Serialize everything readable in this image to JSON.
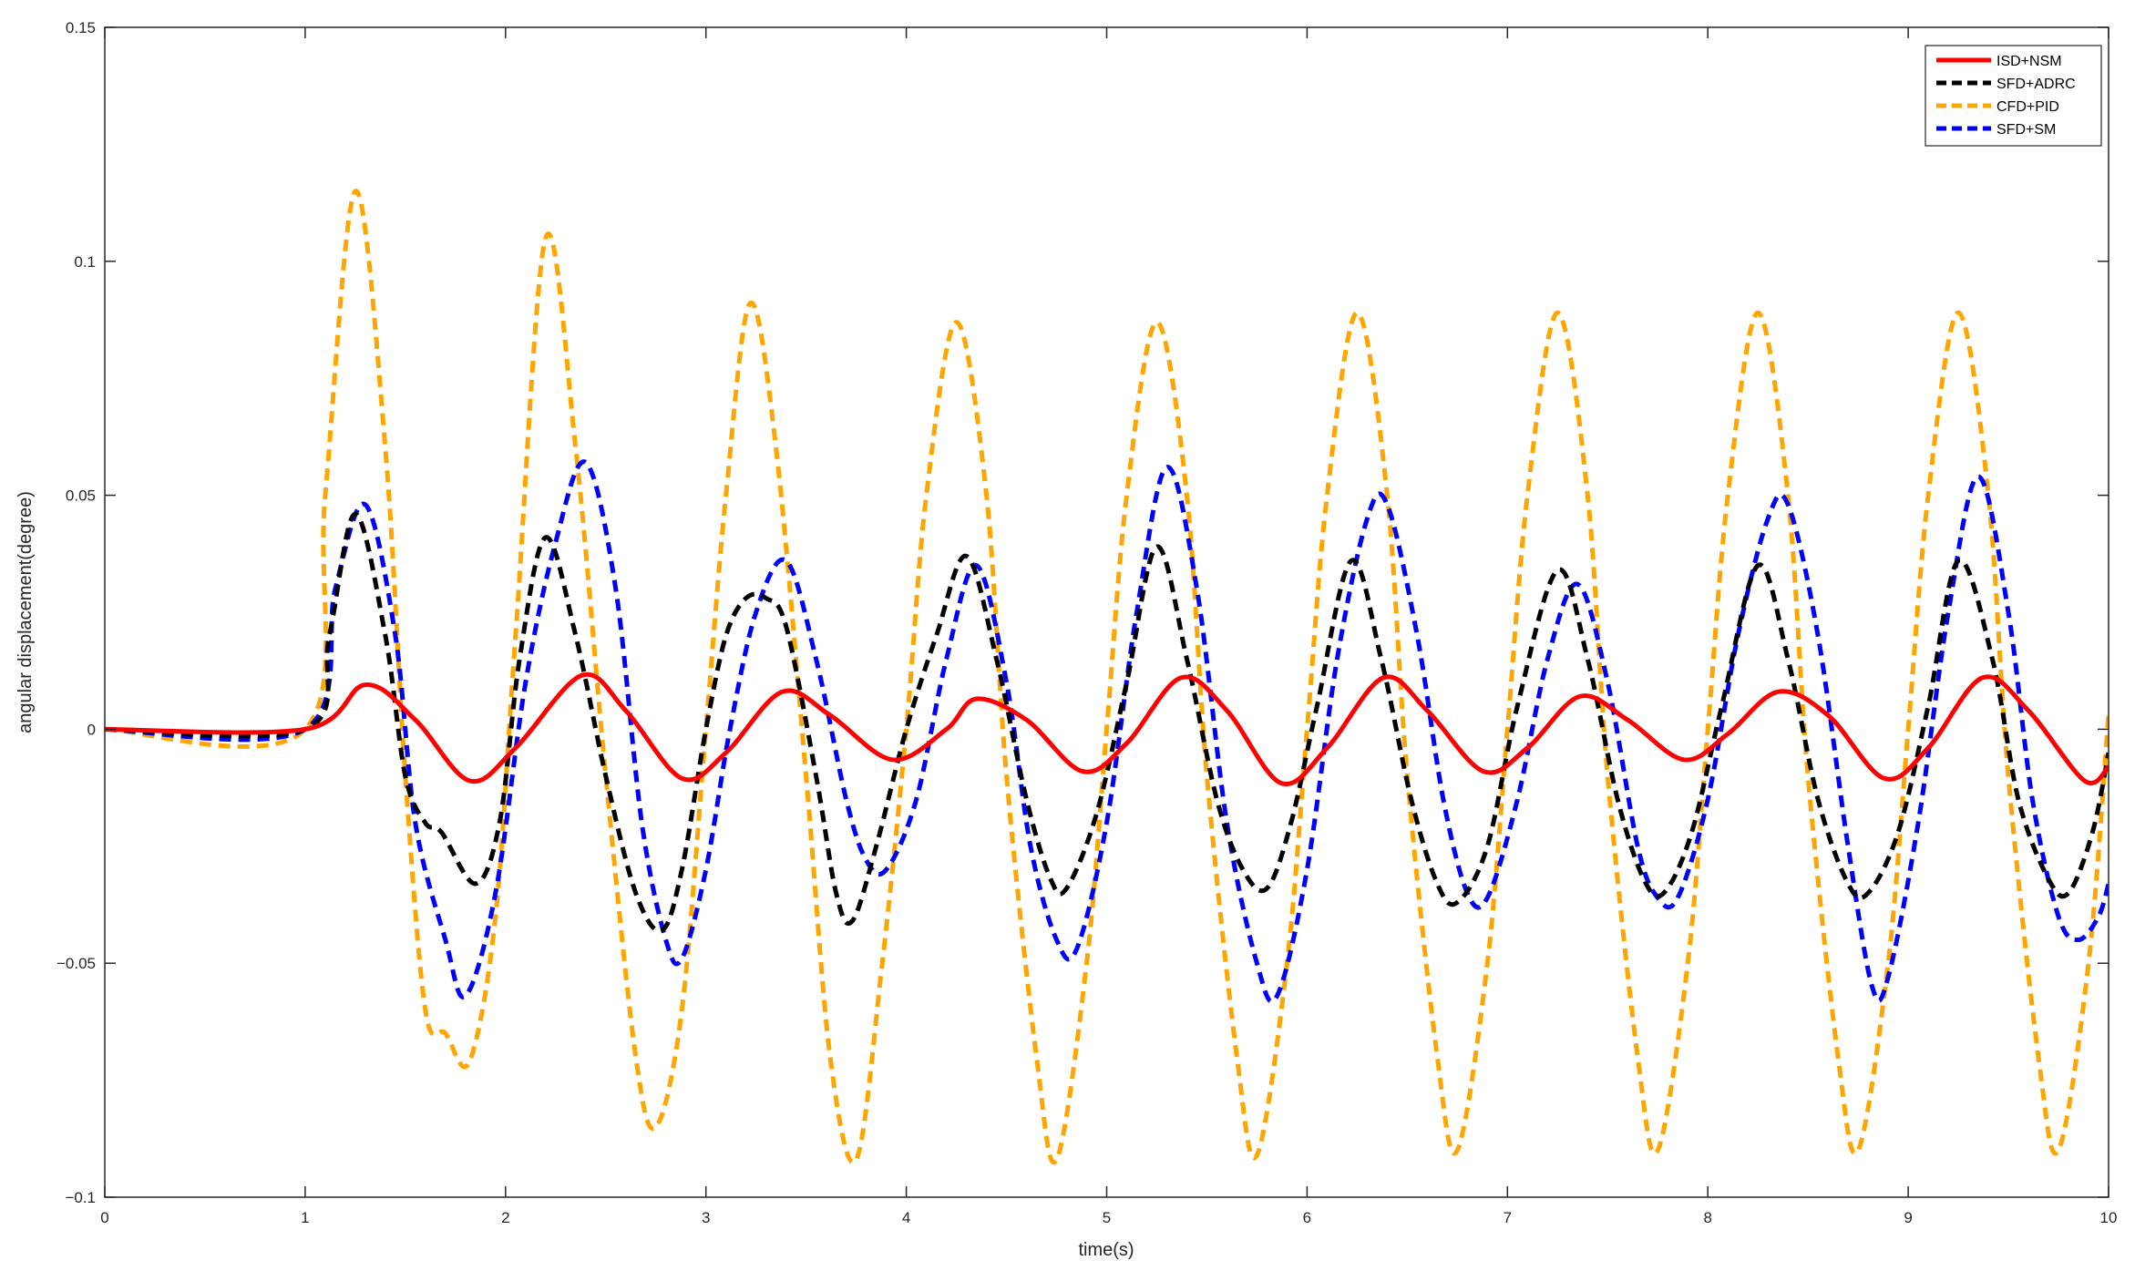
{
  "chart_data": {
    "type": "line",
    "title": "",
    "xlabel": "time(s)",
    "ylabel": "angular displacement(degree)",
    "xlim": [
      0,
      10
    ],
    "ylim": [
      -0.1,
      0.15
    ],
    "xticks": [
      0,
      1,
      2,
      3,
      4,
      5,
      6,
      7,
      8,
      9,
      10
    ],
    "xtick_labels": [
      "0",
      "1",
      "2",
      "3",
      "4",
      "5",
      "6",
      "7",
      "8",
      "9",
      "10"
    ],
    "yticks": [
      -0.1,
      -0.05,
      0,
      0.05,
      0.1,
      0.15
    ],
    "ytick_labels": [
      "−0.1",
      "−0.05",
      "0",
      "0.05",
      "0.1",
      "0.15"
    ],
    "grid": false,
    "legend_position": "top-right",
    "series": [
      {
        "name": "ISD+NSM",
        "color": "#ff0000",
        "style": "solid",
        "points": [
          [
            0,
            0
          ],
          [
            1.0,
            0
          ],
          [
            1.3,
            0.0095
          ],
          [
            1.55,
            0.002
          ],
          [
            1.82,
            -0.011
          ],
          [
            2.05,
            -0.004
          ],
          [
            2.38,
            0.0115
          ],
          [
            2.6,
            0.004
          ],
          [
            2.88,
            -0.0105
          ],
          [
            3.1,
            -0.005
          ],
          [
            3.38,
            0.008
          ],
          [
            3.62,
            0.003
          ],
          [
            3.93,
            -0.0065
          ],
          [
            4.2,
            0.0
          ],
          [
            4.35,
            0.0065
          ],
          [
            4.6,
            0.002
          ],
          [
            4.88,
            -0.009
          ],
          [
            5.1,
            -0.003
          ],
          [
            5.37,
            0.011
          ],
          [
            5.6,
            0.004
          ],
          [
            5.87,
            -0.0115
          ],
          [
            6.1,
            -0.004
          ],
          [
            6.38,
            0.011
          ],
          [
            6.6,
            0.004
          ],
          [
            6.88,
            -0.009
          ],
          [
            7.1,
            -0.004
          ],
          [
            7.36,
            0.007
          ],
          [
            7.6,
            0.002
          ],
          [
            7.88,
            -0.0065
          ],
          [
            8.1,
            -0.001
          ],
          [
            8.35,
            0.008
          ],
          [
            8.6,
            0.003
          ],
          [
            8.88,
            -0.0105
          ],
          [
            9.1,
            -0.004
          ],
          [
            9.37,
            0.011
          ],
          [
            9.6,
            0.004
          ],
          [
            9.88,
            -0.011
          ],
          [
            10.0,
            -0.008
          ]
        ]
      },
      {
        "name": "SFD+ADRC",
        "color": "#000000",
        "style": "dashed",
        "points": [
          [
            0,
            0
          ],
          [
            1.0,
            0
          ],
          [
            1.12,
            0.02
          ],
          [
            1.25,
            0.046
          ],
          [
            1.4,
            0.02
          ],
          [
            1.5,
            -0.01
          ],
          [
            1.6,
            -0.02
          ],
          [
            1.68,
            -0.022
          ],
          [
            1.85,
            -0.033
          ],
          [
            1.97,
            -0.02
          ],
          [
            2.07,
            0.015
          ],
          [
            2.2,
            0.041
          ],
          [
            2.35,
            0.02
          ],
          [
            2.5,
            -0.01
          ],
          [
            2.65,
            -0.035
          ],
          [
            2.78,
            -0.043
          ],
          [
            2.88,
            -0.03
          ],
          [
            3.0,
            0.0
          ],
          [
            3.1,
            0.02
          ],
          [
            3.2,
            0.028
          ],
          [
            3.3,
            0.028
          ],
          [
            3.4,
            0.022
          ],
          [
            3.55,
            -0.01
          ],
          [
            3.65,
            -0.035
          ],
          [
            3.73,
            -0.041
          ],
          [
            3.85,
            -0.025
          ],
          [
            4.0,
            0.0
          ],
          [
            4.15,
            0.02
          ],
          [
            4.3,
            0.037
          ],
          [
            4.45,
            0.015
          ],
          [
            4.6,
            -0.015
          ],
          [
            4.72,
            -0.032
          ],
          [
            4.8,
            -0.034
          ],
          [
            4.95,
            -0.018
          ],
          [
            5.1,
            0.01
          ],
          [
            5.25,
            0.039
          ],
          [
            5.4,
            0.015
          ],
          [
            5.55,
            -0.015
          ],
          [
            5.68,
            -0.03
          ],
          [
            5.8,
            -0.034
          ],
          [
            5.92,
            -0.02
          ],
          [
            6.05,
            0.005
          ],
          [
            6.22,
            0.036
          ],
          [
            6.37,
            0.015
          ],
          [
            6.52,
            -0.015
          ],
          [
            6.65,
            -0.033
          ],
          [
            6.75,
            -0.037
          ],
          [
            6.9,
            -0.025
          ],
          [
            7.05,
            0.005
          ],
          [
            7.25,
            0.034
          ],
          [
            7.4,
            0.015
          ],
          [
            7.55,
            -0.015
          ],
          [
            7.68,
            -0.032
          ],
          [
            7.78,
            -0.035
          ],
          [
            7.92,
            -0.022
          ],
          [
            8.07,
            0.005
          ],
          [
            8.25,
            0.035
          ],
          [
            8.4,
            0.015
          ],
          [
            8.55,
            -0.015
          ],
          [
            8.7,
            -0.033
          ],
          [
            8.8,
            -0.035
          ],
          [
            8.95,
            -0.022
          ],
          [
            9.1,
            0.005
          ],
          [
            9.25,
            0.036
          ],
          [
            9.42,
            0.015
          ],
          [
            9.55,
            -0.015
          ],
          [
            9.7,
            -0.032
          ],
          [
            9.8,
            -0.035
          ],
          [
            9.92,
            -0.022
          ],
          [
            10.0,
            -0.005
          ]
        ]
      },
      {
        "name": "CFD+PID",
        "color": "#ffa500",
        "style": "dashed",
        "points": [
          [
            0,
            0
          ],
          [
            1.0,
            0
          ],
          [
            1.1,
            0.05
          ],
          [
            1.25,
            0.115
          ],
          [
            1.4,
            0.06
          ],
          [
            1.5,
            -0.01
          ],
          [
            1.6,
            -0.06
          ],
          [
            1.7,
            -0.065
          ],
          [
            1.82,
            -0.071
          ],
          [
            1.95,
            -0.04
          ],
          [
            2.05,
            0.02
          ],
          [
            2.2,
            0.105
          ],
          [
            2.35,
            0.06
          ],
          [
            2.5,
            -0.01
          ],
          [
            2.65,
            -0.07
          ],
          [
            2.75,
            -0.085
          ],
          [
            2.88,
            -0.06
          ],
          [
            3.0,
            0.0
          ],
          [
            3.1,
            0.05
          ],
          [
            3.22,
            0.091
          ],
          [
            3.35,
            0.06
          ],
          [
            3.5,
            -0.01
          ],
          [
            3.62,
            -0.07
          ],
          [
            3.75,
            -0.092
          ],
          [
            3.88,
            -0.05
          ],
          [
            4.0,
            0.0
          ],
          [
            4.1,
            0.05
          ],
          [
            4.25,
            0.087
          ],
          [
            4.4,
            0.05
          ],
          [
            4.5,
            -0.01
          ],
          [
            4.65,
            -0.07
          ],
          [
            4.75,
            -0.092
          ],
          [
            4.9,
            -0.05
          ],
          [
            5.0,
            0.0
          ],
          [
            5.1,
            0.05
          ],
          [
            5.25,
            0.087
          ],
          [
            5.4,
            0.05
          ],
          [
            5.5,
            -0.01
          ],
          [
            5.65,
            -0.07
          ],
          [
            5.75,
            -0.091
          ],
          [
            5.9,
            -0.05
          ],
          [
            6.0,
            0.0
          ],
          [
            6.1,
            0.05
          ],
          [
            6.25,
            0.089
          ],
          [
            6.4,
            0.05
          ],
          [
            6.5,
            -0.01
          ],
          [
            6.65,
            -0.07
          ],
          [
            6.75,
            -0.09
          ],
          [
            6.9,
            -0.05
          ],
          [
            7.0,
            0.0
          ],
          [
            7.1,
            0.05
          ],
          [
            7.25,
            0.089
          ],
          [
            7.4,
            0.05
          ],
          [
            7.5,
            -0.01
          ],
          [
            7.65,
            -0.07
          ],
          [
            7.75,
            -0.09
          ],
          [
            7.9,
            -0.05
          ],
          [
            8.0,
            0.0
          ],
          [
            8.1,
            0.05
          ],
          [
            8.25,
            0.089
          ],
          [
            8.4,
            0.05
          ],
          [
            8.5,
            -0.01
          ],
          [
            8.65,
            -0.07
          ],
          [
            8.75,
            -0.09
          ],
          [
            8.9,
            -0.05
          ],
          [
            9.0,
            0.0
          ],
          [
            9.1,
            0.05
          ],
          [
            9.25,
            0.089
          ],
          [
            9.4,
            0.05
          ],
          [
            9.5,
            -0.01
          ],
          [
            9.65,
            -0.07
          ],
          [
            9.75,
            -0.09
          ],
          [
            9.9,
            -0.05
          ],
          [
            10.0,
            0.003
          ]
        ]
      },
      {
        "name": "SFD+SM",
        "color": "#0000ff",
        "style": "dashed",
        "points": [
          [
            0,
            0
          ],
          [
            1.0,
            0
          ],
          [
            1.15,
            0.03
          ],
          [
            1.3,
            0.048
          ],
          [
            1.45,
            0.02
          ],
          [
            1.55,
            -0.02
          ],
          [
            1.7,
            -0.045
          ],
          [
            1.8,
            -0.057
          ],
          [
            1.95,
            -0.035
          ],
          [
            2.1,
            0.01
          ],
          [
            2.25,
            0.04
          ],
          [
            2.4,
            0.057
          ],
          [
            2.55,
            0.03
          ],
          [
            2.68,
            -0.02
          ],
          [
            2.8,
            -0.045
          ],
          [
            2.88,
            -0.049
          ],
          [
            3.0,
            -0.03
          ],
          [
            3.12,
            0.0
          ],
          [
            3.25,
            0.025
          ],
          [
            3.4,
            0.036
          ],
          [
            3.55,
            0.015
          ],
          [
            3.7,
            -0.015
          ],
          [
            3.8,
            -0.028
          ],
          [
            3.9,
            -0.03
          ],
          [
            4.05,
            -0.015
          ],
          [
            4.2,
            0.015
          ],
          [
            4.35,
            0.035
          ],
          [
            4.5,
            0.01
          ],
          [
            4.62,
            -0.025
          ],
          [
            4.75,
            -0.045
          ],
          [
            4.85,
            -0.047
          ],
          [
            5.0,
            -0.02
          ],
          [
            5.15,
            0.025
          ],
          [
            5.3,
            0.056
          ],
          [
            5.45,
            0.03
          ],
          [
            5.6,
            -0.02
          ],
          [
            5.75,
            -0.05
          ],
          [
            5.85,
            -0.057
          ],
          [
            6.0,
            -0.03
          ],
          [
            6.15,
            0.015
          ],
          [
            6.3,
            0.045
          ],
          [
            6.4,
            0.048
          ],
          [
            6.55,
            0.02
          ],
          [
            6.68,
            -0.015
          ],
          [
            6.8,
            -0.035
          ],
          [
            6.9,
            -0.036
          ],
          [
            7.05,
            -0.015
          ],
          [
            7.2,
            0.015
          ],
          [
            7.35,
            0.031
          ],
          [
            7.5,
            0.01
          ],
          [
            7.65,
            -0.025
          ],
          [
            7.75,
            -0.036
          ],
          [
            7.85,
            -0.036
          ],
          [
            8.0,
            -0.015
          ],
          [
            8.15,
            0.02
          ],
          [
            8.3,
            0.045
          ],
          [
            8.4,
            0.048
          ],
          [
            8.55,
            0.02
          ],
          [
            8.7,
            -0.025
          ],
          [
            8.82,
            -0.055
          ],
          [
            8.9,
            -0.053
          ],
          [
            9.05,
            -0.02
          ],
          [
            9.2,
            0.025
          ],
          [
            9.35,
            0.054
          ],
          [
            9.5,
            0.025
          ],
          [
            9.62,
            -0.015
          ],
          [
            9.75,
            -0.04
          ],
          [
            9.85,
            -0.045
          ],
          [
            9.95,
            -0.04
          ],
          [
            10.0,
            -0.033
          ]
        ]
      }
    ]
  }
}
